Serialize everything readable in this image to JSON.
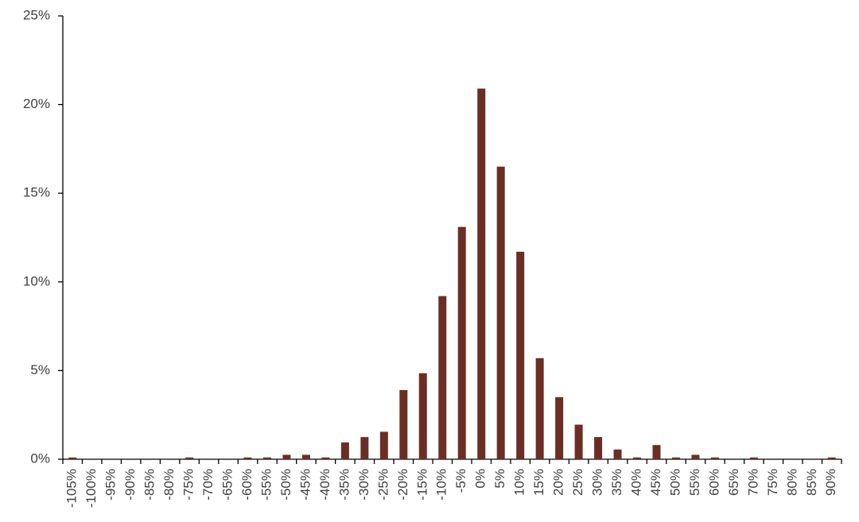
{
  "chart_data": {
    "type": "bar",
    "categories": [
      "-105%",
      "-100%",
      "-95%",
      "-90%",
      "-85%",
      "-80%",
      "-75%",
      "-70%",
      "-65%",
      "-60%",
      "-55%",
      "-50%",
      "-45%",
      "-40%",
      "-35%",
      "-30%",
      "-25%",
      "-20%",
      "-15%",
      "-10%",
      "-5%",
      "0%",
      "5%",
      "10%",
      "15%",
      "20%",
      "25%",
      "30%",
      "35%",
      "40%",
      "45%",
      "50%",
      "55%",
      "60%",
      "65%",
      "70%",
      "75%",
      "80%",
      "85%",
      "90%"
    ],
    "values": [
      0.1,
      0,
      0,
      0,
      0,
      0,
      0.1,
      0,
      0,
      0.1,
      0.1,
      0.25,
      0.25,
      0.1,
      0.95,
      1.25,
      1.55,
      3.9,
      4.85,
      9.2,
      13.1,
      20.9,
      16.5,
      11.7,
      5.7,
      3.5,
      1.95,
      1.25,
      0.55,
      0.1,
      0.8,
      0.1,
      0.25,
      0.1,
      0,
      0.1,
      0,
      0,
      0,
      0.1
    ],
    "color": "#6b2e24",
    "ylim": [
      0,
      25
    ],
    "yticks": [
      {
        "value": 0,
        "label": "0%"
      },
      {
        "value": 5,
        "label": "5%"
      },
      {
        "value": 10,
        "label": "10%"
      },
      {
        "value": 15,
        "label": "15%"
      },
      {
        "value": 20,
        "label": "20%"
      },
      {
        "value": 25,
        "label": "25%"
      }
    ],
    "grid": false
  }
}
